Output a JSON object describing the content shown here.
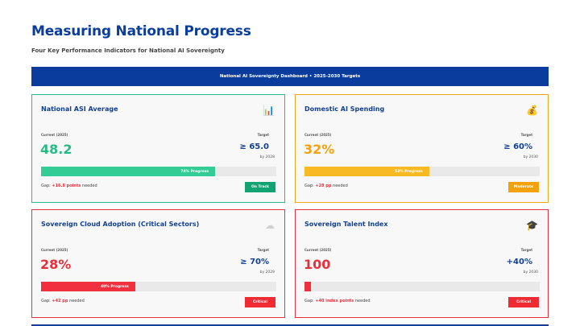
{
  "header": {
    "title": "Measuring National Progress",
    "subtitle": "Four Key Performance Indicators for National AI Sovereignty"
  },
  "banner": {
    "text": "National AI Sovereignty Dashboard • 2025-2030 Targets"
  },
  "labels": {
    "current": "Current (2025)",
    "target": "Target",
    "gap_prefix": "Gap:",
    "gap_suffix": "needed"
  },
  "cards": [
    {
      "title": "National ASI Average",
      "icon": "bar-chart-icon",
      "icon_glyph": "📊",
      "current_value": "48.2",
      "target_value": "≥ 65.0",
      "target_by": "by 2028",
      "progress_pct": 74,
      "progress_label": "74% Progress",
      "gap_value": "+16.8 points",
      "status": "On Track",
      "color": "#2ab985"
    },
    {
      "title": "Domestic AI Spending",
      "icon": "money-bag-icon",
      "icon_glyph": "💰",
      "current_value": "32%",
      "target_value": "≥ 60%",
      "target_by": "by 2030",
      "progress_pct": 53,
      "progress_label": "53% Progress",
      "gap_value": "+28 pp",
      "status": "Moderate",
      "color": "#f5a10a"
    },
    {
      "title": "Sovereign Cloud Adoption (Critical Sectors)",
      "icon": "cloud-icon",
      "icon_glyph": "☁",
      "current_value": "28%",
      "target_value": "≥ 70%",
      "target_by": "by 2029",
      "progress_pct": 40,
      "progress_label": "40% Progress",
      "gap_value": "+42 pp",
      "status": "Critical",
      "color": "#e8303c"
    },
    {
      "title": "Sovereign Talent Index",
      "icon": "graduation-cap-icon",
      "icon_glyph": "🎓",
      "current_value": "100",
      "target_value": "+40%",
      "target_by": "by 2030",
      "progress_pct": 0,
      "progress_label": "",
      "gap_value": "+40 index points",
      "status": "Critical",
      "color": "#e8303c"
    }
  ]
}
